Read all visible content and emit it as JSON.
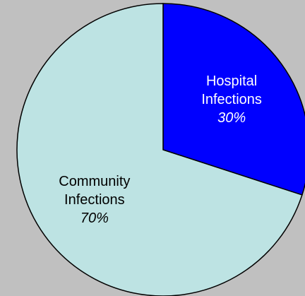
{
  "chart_data": {
    "type": "pie",
    "categories": [
      "Hospital Infections",
      "Community Infections"
    ],
    "values": [
      30,
      70
    ],
    "value_labels": [
      "30%",
      "70%"
    ],
    "colors": [
      "#0000ff",
      "#bde3e3"
    ]
  }
}
